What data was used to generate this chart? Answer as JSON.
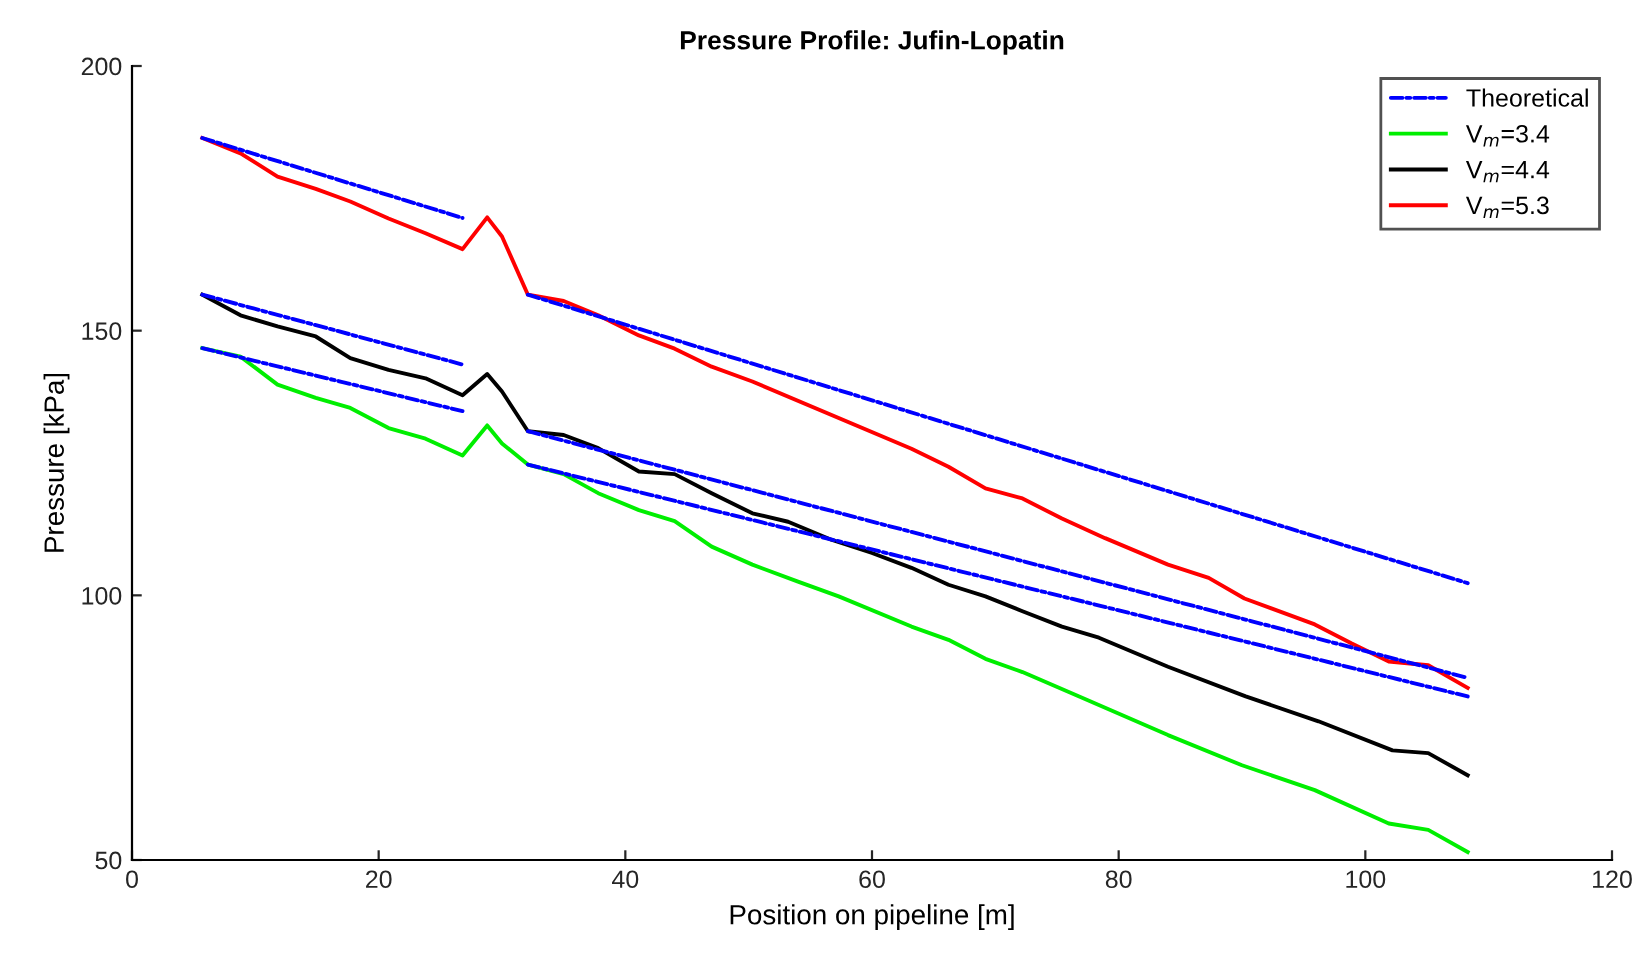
{
  "chart_data": {
    "type": "line",
    "title": "Pressure Profile: Jufin-Lopatin",
    "xlabel": "Position on pipeline [m]",
    "ylabel": "Pressure [kPa]",
    "xlim": [
      0,
      120
    ],
    "xticks": [
      0,
      20,
      40,
      60,
      80,
      100,
      120
    ],
    "ylim": [
      50,
      200
    ],
    "yticks": [
      50,
      100,
      150,
      200
    ],
    "grid": false,
    "legend": "top right",
    "marker": "none",
    "series": [
      {
        "name": "Theoretical",
        "color": "#0000ff",
        "line_style": "dashdot",
        "x": [
          5.7,
          26.8
        ],
        "values": [
          186.4,
          171.3
        ]
      },
      {
        "color": "#0000ff",
        "line_style": "dashdot",
        "x": [
          32.1,
          108.3
        ],
        "values": [
          156.8,
          102.3
        ]
      },
      {
        "color": "#0000ff",
        "line_style": "dashdot",
        "x": [
          5.7,
          26.8
        ],
        "values": [
          156.8,
          143.6
        ]
      },
      {
        "color": "#0000ff",
        "line_style": "dashdot",
        "x": [
          32.1,
          108.3
        ],
        "values": [
          131,
          84.4
        ]
      },
      {
        "color": "#0000ff",
        "line_style": "dashdot",
        "x": [
          5.7,
          26.8
        ],
        "values": [
          146.7,
          134.8
        ]
      },
      {
        "color": "#0000ff",
        "line_style": "dashdot",
        "x": [
          32.1,
          108.3
        ],
        "values": [
          124.7,
          80.9
        ]
      },
      {
        "name": "V$_{m}$=3.4",
        "color": "#00ee00",
        "line_style": "solid",
        "x": [
          5.7,
          8.8,
          11.8,
          14.9,
          17.7,
          20.8,
          23.8,
          26.8,
          28.8,
          30,
          32.1,
          35,
          37.8,
          41.1,
          44,
          47,
          50.3,
          54,
          57.3,
          63.2,
          66.2,
          69.2,
          72.2,
          76.8,
          84,
          90,
          95.9,
          101.9,
          105.1,
          108.3
        ],
        "values": [
          146.7,
          145.1,
          139.8,
          137.3,
          135.4,
          131.6,
          129.6,
          126.4,
          132.1,
          128.7,
          124.7,
          122.9,
          119.3,
          116.1,
          114,
          109.2,
          105.8,
          102.6,
          99.8,
          94.1,
          91.6,
          88,
          85.5,
          80.9,
          73.6,
          67.9,
          63.2,
          56.9,
          55.7,
          51.5
        ]
      },
      {
        "name": "V$_{m}$=4.4",
        "color": "#000000",
        "line_style": "solid",
        "x": [
          5.7,
          8.8,
          11.8,
          14.9,
          17.7,
          20.8,
          23.8,
          26.8,
          28.8,
          30,
          32.1,
          35,
          37.8,
          41.1,
          44,
          47,
          50.3,
          53.2,
          56.7,
          60,
          63.2,
          66.2,
          69.2,
          72.2,
          75.4,
          78.4,
          84,
          90.3,
          96.2,
          102.2,
          105.1,
          108.3
        ],
        "values": [
          156.8,
          152.9,
          150.8,
          148.9,
          144.8,
          142.6,
          141,
          137.8,
          141.8,
          138.5,
          131,
          130.3,
          127.8,
          123.4,
          122.9,
          119.3,
          115.5,
          113.9,
          110.5,
          108,
          105.2,
          102,
          99.8,
          97,
          94.1,
          92,
          86.5,
          80.9,
          76.2,
          70.7,
          70.2,
          66
        ]
      },
      {
        "name": "V$_{m}$=5.3",
        "color": "#ff0000",
        "line_style": "solid",
        "x": [
          5.7,
          8.8,
          11.8,
          14.9,
          17.7,
          20.8,
          23.8,
          26.8,
          28.8,
          30,
          32.1,
          35,
          37.8,
          41.1,
          44,
          47,
          50.3,
          63.2,
          66.2,
          69.2,
          72.2,
          75.4,
          78.9,
          84,
          87.3,
          90.2,
          95.9,
          98.9,
          101.9,
          105.1,
          108.3
        ],
        "values": [
          186.4,
          183.5,
          179.1,
          176.8,
          174.4,
          171.2,
          168.4,
          165.4,
          171.4,
          167.8,
          156.8,
          155.6,
          152.9,
          149.1,
          146.6,
          143.2,
          140.4,
          127.7,
          124.3,
          120.2,
          118.3,
          114.5,
          110.8,
          105.8,
          103.3,
          99.4,
          94.5,
          90.9,
          87.5,
          86.8,
          82.5
        ]
      }
    ]
  }
}
